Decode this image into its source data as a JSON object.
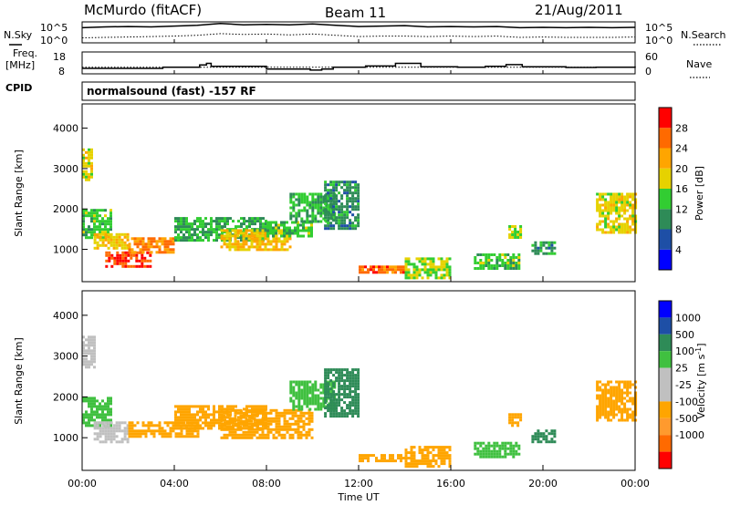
{
  "header": {
    "station": "McMurdo (fitACF)",
    "beam": "Beam 11",
    "date": "21/Aug/2011"
  },
  "panel_labels": {
    "nsky": "N.Sky",
    "nsearch": "N.Search",
    "freq_line1": "Freq.",
    "freq_line2": "[MHz]",
    "nave": "Nave",
    "cpid": "CPID",
    "cpid_value": "normalsound (fast) -157 RF"
  },
  "colors": {
    "power": [
      "#0000ff",
      "#1e4fa6",
      "#2e8b57",
      "#32cd32",
      "#e6d200",
      "#ffa500",
      "#ff6a00",
      "#ff0000"
    ],
    "velocity": [
      "#ff0000",
      "#ff6a00",
      "#ffa500",
      "#ff9a2e",
      "#c0c0c0",
      "#c0c0c0",
      "#40c040",
      "#2e8b57",
      "#1e4fa6",
      "#0000ff"
    ]
  },
  "chart_data": [
    {
      "type": "line",
      "name": "noise-panel",
      "left_axis": {
        "label": "N.Sky",
        "ticks": [
          "10^5",
          "10^0"
        ]
      },
      "right_axis": {
        "label": "N.Search",
        "ticks": [
          "10^5",
          "10^0"
        ]
      },
      "x": [
        0,
        1,
        2,
        3,
        4,
        5,
        6,
        7,
        8,
        9,
        10,
        11,
        12,
        13,
        14,
        15,
        16,
        17,
        18,
        19,
        20,
        21,
        22,
        23,
        24
      ],
      "series": [
        {
          "label": "N.Sky",
          "style": "solid",
          "values_log10": [
            3.6,
            3.8,
            3.9,
            3.8,
            4.0,
            4.2,
            4.6,
            4.3,
            4.4,
            4.3,
            4.5,
            4.2,
            3.9,
            4.0,
            4.1,
            3.8,
            3.9,
            3.8,
            3.9,
            3.6,
            3.7,
            3.6,
            3.7,
            3.6,
            3.7
          ]
        },
        {
          "label": "N.Search",
          "style": "dotted",
          "values_log10": [
            1.2,
            1.3,
            1.4,
            1.5,
            1.6,
            1.8,
            2.2,
            2.0,
            2.1,
            1.9,
            2.1,
            1.8,
            1.5,
            1.6,
            1.6,
            1.5,
            1.6,
            1.5,
            1.6,
            1.3,
            1.4,
            1.3,
            1.3,
            1.3,
            1.4
          ]
        }
      ]
    },
    {
      "type": "line",
      "name": "freq-nave-panel",
      "left_axis": {
        "label": "Freq. [MHz]",
        "ticks": [
          "18",
          "8"
        ],
        "range": [
          8,
          18
        ]
      },
      "right_axis": {
        "label": "Nave",
        "ticks": [
          "60",
          "0"
        ],
        "range": [
          0,
          60
        ]
      },
      "series": [
        {
          "label": "Freq.",
          "style": "solid",
          "steps": [
            [
              0,
              10.5
            ],
            [
              3.5,
              11.0
            ],
            [
              5.1,
              12.1
            ],
            [
              5.4,
              12.8
            ],
            [
              5.6,
              11.4
            ],
            [
              8.0,
              10.2
            ],
            [
              9.9,
              9.7
            ],
            [
              10.4,
              10.2
            ],
            [
              10.9,
              11.0
            ],
            [
              12.3,
              11.6
            ],
            [
              13.6,
              12.8
            ],
            [
              14.7,
              11.2
            ],
            [
              16.3,
              11.0
            ],
            [
              17.5,
              11.4
            ],
            [
              18.4,
              12.2
            ],
            [
              19.1,
              11.2
            ],
            [
              21.0,
              10.9
            ],
            [
              22.3,
              11.0
            ],
            [
              24.0,
              11.4
            ]
          ]
        },
        {
          "label": "Nave",
          "style": "dotted",
          "constant": 18
        }
      ]
    },
    {
      "type": "heatmap",
      "name": "power-panel",
      "ylabel": "Slant Range [km]",
      "ylim": [
        200,
        4600
      ],
      "yticks": [
        "1000",
        "2000",
        "3000",
        "4000"
      ],
      "xlim": [
        0,
        24
      ],
      "colorbar": {
        "label": "Power [dB]",
        "ticks": [
          "4",
          "8",
          "12",
          "16",
          "20",
          "24",
          "28"
        ],
        "range": [
          0,
          32
        ]
      },
      "echo_regions": [
        {
          "x": [
            0.0,
            0.4
          ],
          "y": [
            2700,
            3500
          ],
          "value": 18
        },
        {
          "x": [
            0.0,
            1.2
          ],
          "y": [
            1300,
            2000
          ],
          "value": 14
        },
        {
          "x": [
            0.5,
            2.0
          ],
          "y": [
            1000,
            1400
          ],
          "value": 20
        },
        {
          "x": [
            1.0,
            3.0
          ],
          "y": [
            600,
            950
          ],
          "value": 28
        },
        {
          "x": [
            2.0,
            4.0
          ],
          "y": [
            950,
            1300
          ],
          "value": 24
        },
        {
          "x": [
            4.0,
            8.0
          ],
          "y": [
            1200,
            1800
          ],
          "value": 12
        },
        {
          "x": [
            6.0,
            9.0
          ],
          "y": [
            1000,
            1500
          ],
          "value": 20
        },
        {
          "x": [
            8.0,
            10.0
          ],
          "y": [
            1300,
            1700
          ],
          "value": 14
        },
        {
          "x": [
            9.0,
            11.0
          ],
          "y": [
            1700,
            2400
          ],
          "value": 12
        },
        {
          "x": [
            10.5,
            12.0
          ],
          "y": [
            1500,
            2700
          ],
          "value": 10
        },
        {
          "x": [
            12.0,
            14.0
          ],
          "y": [
            400,
            600
          ],
          "value": 26
        },
        {
          "x": [
            14.0,
            16.0
          ],
          "y": [
            300,
            800
          ],
          "value": 16
        },
        {
          "x": [
            17.0,
            19.0
          ],
          "y": [
            500,
            900
          ],
          "value": 14
        },
        {
          "x": [
            18.5,
            19.0
          ],
          "y": [
            1300,
            1600
          ],
          "value": 16
        },
        {
          "x": [
            19.5,
            20.5
          ],
          "y": [
            900,
            1200
          ],
          "value": 10
        },
        {
          "x": [
            22.3,
            24.0
          ],
          "y": [
            1400,
            2400
          ],
          "value": 18
        }
      ]
    },
    {
      "type": "heatmap",
      "name": "velocity-panel",
      "ylabel": "Slant Range [km]",
      "ylim": [
        200,
        4600
      ],
      "yticks": [
        "1000",
        "2000",
        "3000",
        "4000"
      ],
      "xlim": [
        0,
        24
      ],
      "xlabel": "Time UT",
      "xticks": [
        "00:00",
        "04:00",
        "08:00",
        "12:00",
        "16:00",
        "20:00",
        "00:00"
      ],
      "colorbar": {
        "label": "Velocity [m s^-1]",
        "ticks": [
          "-1000",
          "-500",
          "-100",
          "-25",
          "25",
          "100",
          "500",
          "1000"
        ]
      },
      "echo_regions": [
        {
          "x": [
            0.0,
            0.5
          ],
          "y": [
            2700,
            3500
          ],
          "value": 0
        },
        {
          "x": [
            0.0,
            1.2
          ],
          "y": [
            1300,
            2000
          ],
          "value": 60
        },
        {
          "x": [
            0.5,
            2.0
          ],
          "y": [
            900,
            1400
          ],
          "value": 0
        },
        {
          "x": [
            2.0,
            5.0
          ],
          "y": [
            1000,
            1400
          ],
          "value": -200
        },
        {
          "x": [
            4.0,
            8.0
          ],
          "y": [
            1200,
            1800
          ],
          "value": -200
        },
        {
          "x": [
            6.0,
            10.0
          ],
          "y": [
            1000,
            1700
          ],
          "value": -300
        },
        {
          "x": [
            9.0,
            11.0
          ],
          "y": [
            1700,
            2400
          ],
          "value": 80
        },
        {
          "x": [
            10.5,
            12.0
          ],
          "y": [
            1500,
            2700
          ],
          "value": 150
        },
        {
          "x": [
            12.0,
            14.0
          ],
          "y": [
            400,
            600
          ],
          "value": -200
        },
        {
          "x": [
            14.0,
            16.0
          ],
          "y": [
            300,
            800
          ],
          "value": -150
        },
        {
          "x": [
            17.0,
            19.0
          ],
          "y": [
            500,
            900
          ],
          "value": 60
        },
        {
          "x": [
            18.5,
            19.0
          ],
          "y": [
            1300,
            1600
          ],
          "value": -150
        },
        {
          "x": [
            19.5,
            20.5
          ],
          "y": [
            900,
            1200
          ],
          "value": 120
        },
        {
          "x": [
            22.3,
            24.0
          ],
          "y": [
            1400,
            2400
          ],
          "value": -250
        }
      ]
    }
  ],
  "axes": {
    "xlabel": "Time UT",
    "ylabel": "Slant Range [km]",
    "xticks": [
      "00:00",
      "04:00",
      "08:00",
      "12:00",
      "16:00",
      "20:00",
      "00:00"
    ],
    "yticks": [
      "1000",
      "2000",
      "3000",
      "4000"
    ],
    "power_ticks": [
      "4",
      "8",
      "12",
      "16",
      "20",
      "24",
      "28"
    ],
    "power_label": "Power [dB]",
    "velocity_ticks": [
      "1000",
      "500",
      "100",
      "25",
      "-25",
      "-100",
      "-500",
      "-1000"
    ],
    "velocity_label": "Velocity [m s",
    "velocity_sup": "-1",
    "velocity_close": "]",
    "noise_left_ticks": {
      "top": "10^5",
      "bottom": "10^0"
    },
    "noise_right_ticks": {
      "top": "10^5",
      "bottom": "10^0"
    },
    "freq_ticks": {
      "top": "18",
      "bottom": "8"
    },
    "nave_ticks": {
      "top": "60",
      "bottom": "0"
    }
  }
}
